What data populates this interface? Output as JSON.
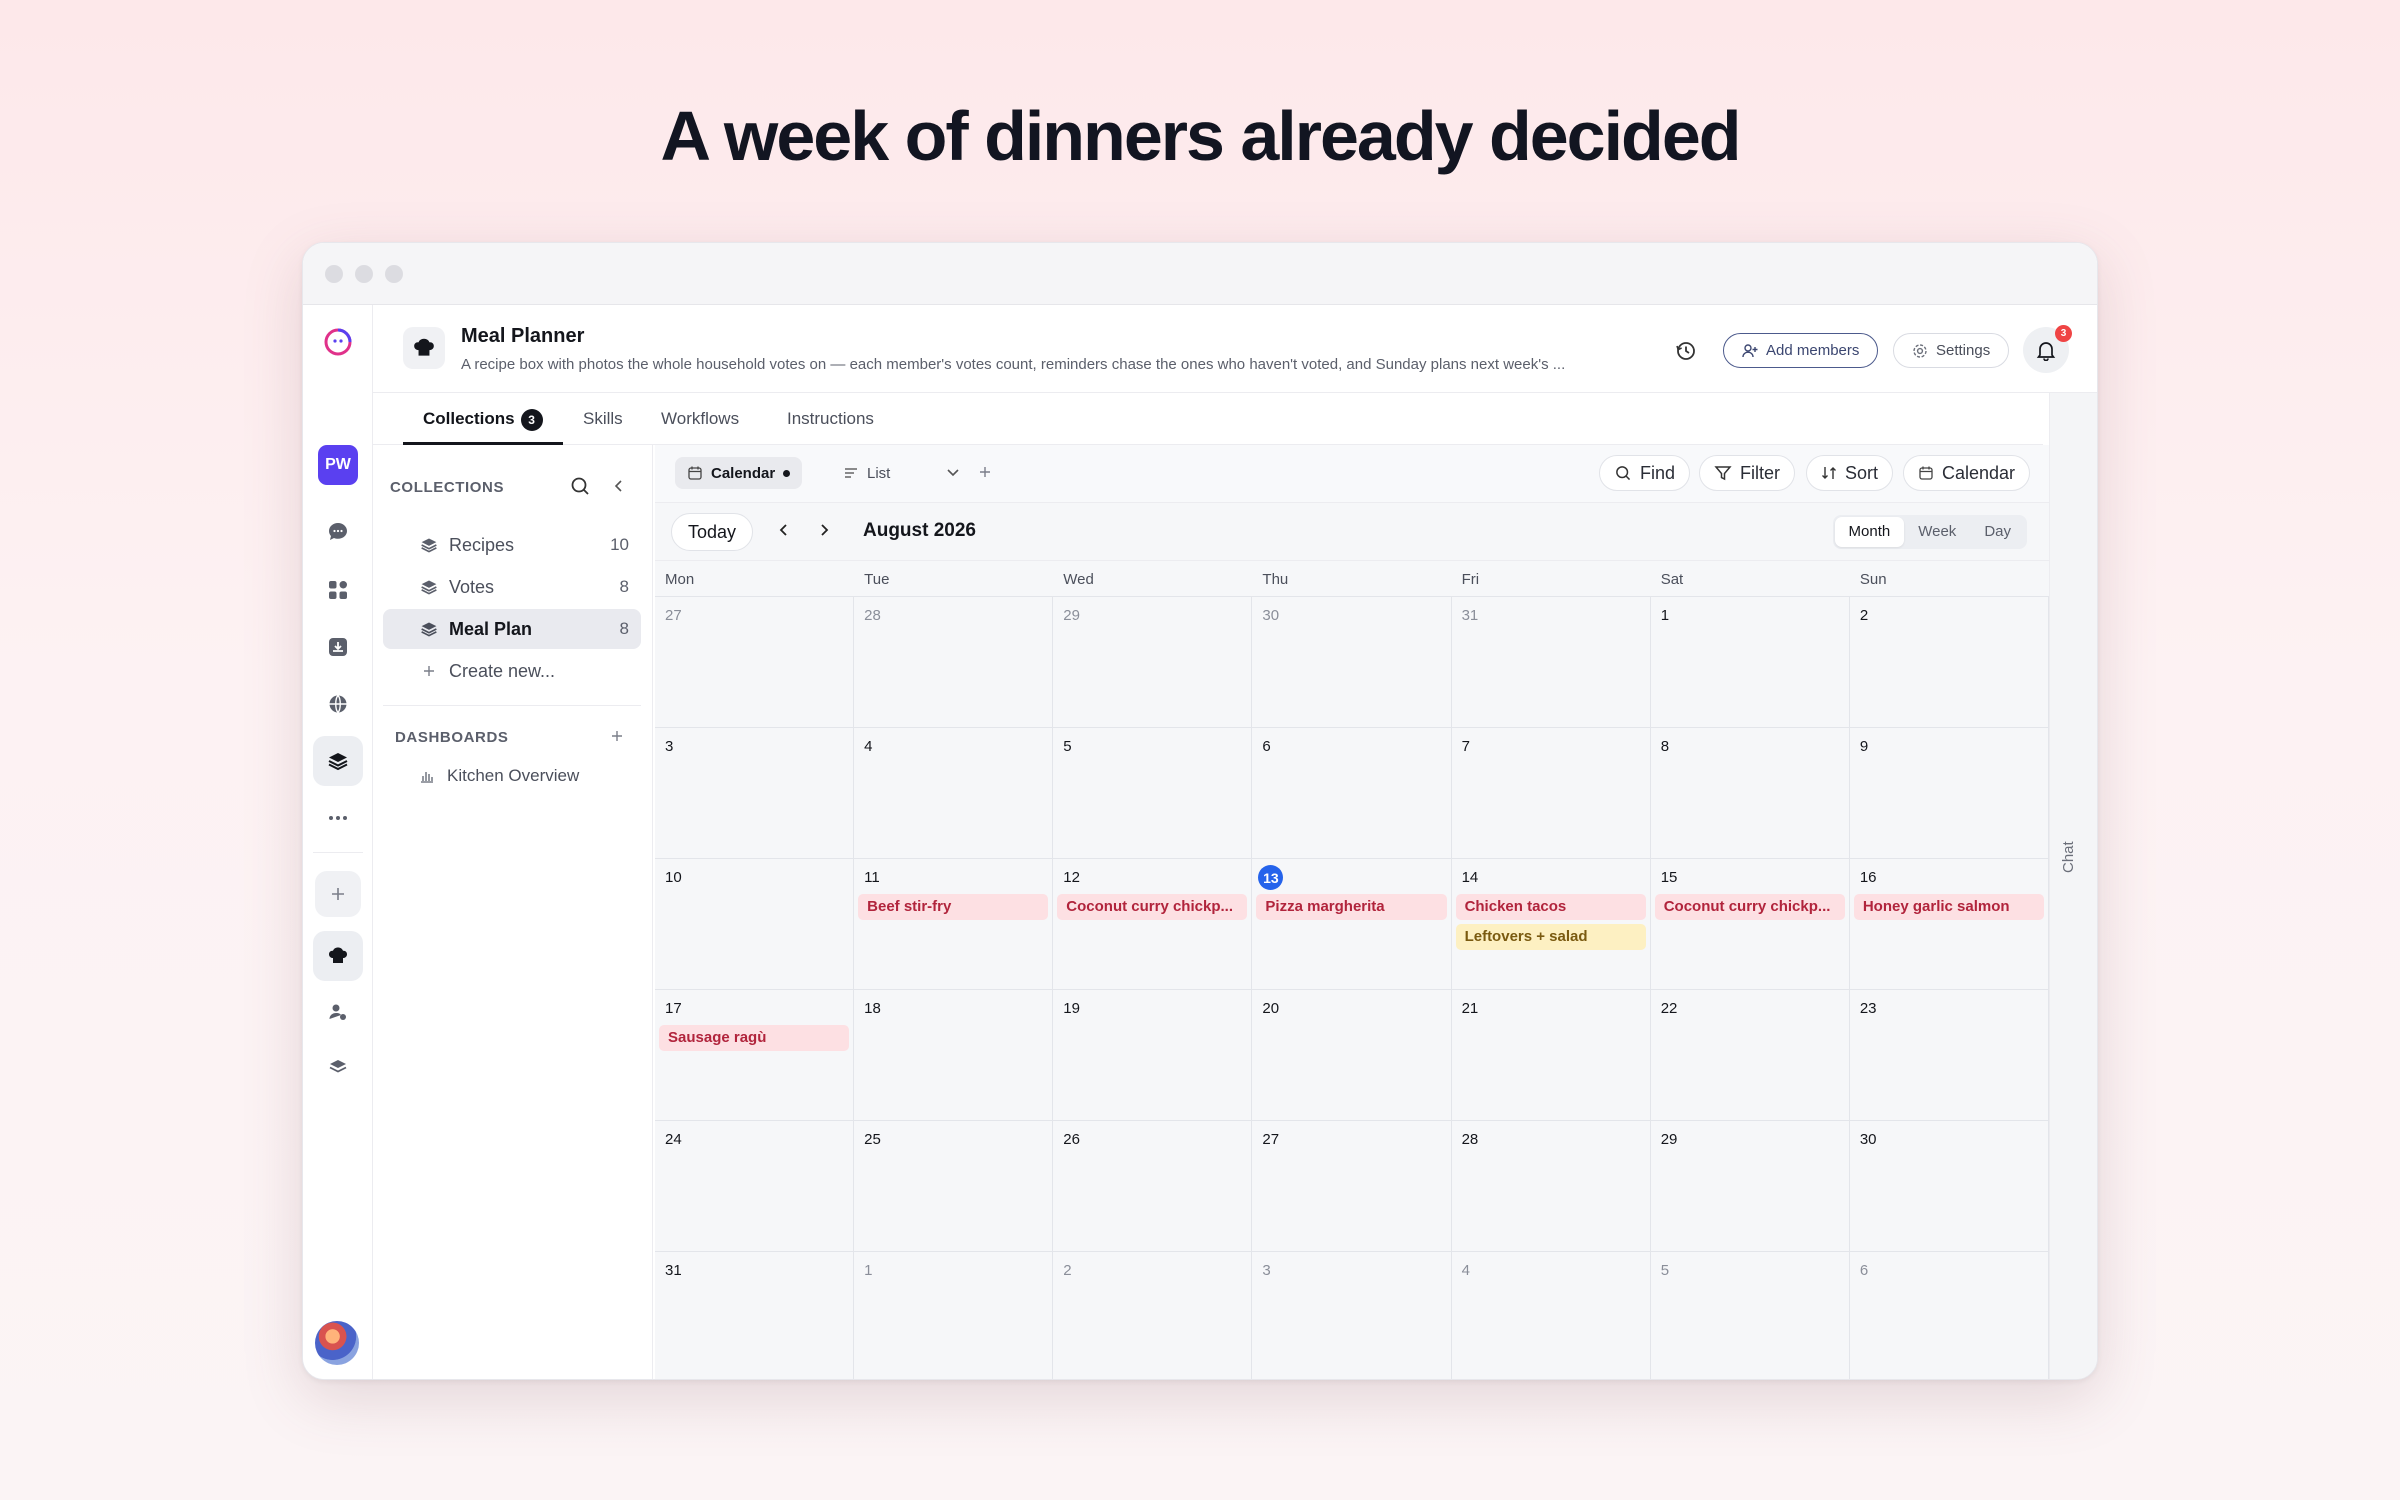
{
  "headline": "A week of dinners already decided",
  "app": {
    "title": "Meal Planner",
    "description": "A recipe box with photos the whole household votes on — each member's votes count, reminders chase the ones who haven't voted, and Sunday plans next week's ...",
    "add_members": "Add members",
    "settings": "Settings",
    "notifications": "3"
  },
  "rail": {
    "workspace_initials": "PW"
  },
  "tabs": [
    {
      "label": "Collections",
      "count": "3"
    },
    {
      "label": "Skills"
    },
    {
      "label": "Workflows"
    },
    {
      "label": "Instructions"
    }
  ],
  "sidebar": {
    "collections_heading": "COLLECTIONS",
    "items": [
      {
        "label": "Recipes",
        "count": "10"
      },
      {
        "label": "Votes",
        "count": "8"
      },
      {
        "label": "Meal Plan",
        "count": "8"
      }
    ],
    "create_new": "Create new...",
    "dashboards_heading": "DASHBOARDS",
    "dashboards": [
      {
        "label": "Kitchen Overview"
      }
    ]
  },
  "toolbar": {
    "view_calendar": "Calendar",
    "view_list": "List",
    "find": "Find",
    "filter": "Filter",
    "sort": "Sort",
    "calendar": "Calendar"
  },
  "calendar": {
    "today": "Today",
    "month_label": "August 2026",
    "modes": [
      "Month",
      "Week",
      "Day"
    ],
    "active_mode": "Month",
    "weekdays": [
      "Mon",
      "Tue",
      "Wed",
      "Thu",
      "Fri",
      "Sat",
      "Sun"
    ],
    "weeks": [
      [
        {
          "d": "27",
          "m": true
        },
        {
          "d": "28",
          "m": true
        },
        {
          "d": "29",
          "m": true
        },
        {
          "d": "30",
          "m": true
        },
        {
          "d": "31",
          "m": true
        },
        {
          "d": "1"
        },
        {
          "d": "2"
        }
      ],
      [
        {
          "d": "3"
        },
        {
          "d": "4"
        },
        {
          "d": "5"
        },
        {
          "d": "6"
        },
        {
          "d": "7"
        },
        {
          "d": "8"
        },
        {
          "d": "9"
        }
      ],
      [
        {
          "d": "10"
        },
        {
          "d": "11",
          "events": [
            {
              "title": "Beef stir-fry",
              "color": "pink"
            }
          ]
        },
        {
          "d": "12",
          "events": [
            {
              "title": "Coconut curry chickp...",
              "color": "pink"
            }
          ]
        },
        {
          "d": "13",
          "today": true,
          "events": [
            {
              "title": "Pizza margherita",
              "color": "pink"
            }
          ]
        },
        {
          "d": "14",
          "events": [
            {
              "title": "Chicken tacos",
              "color": "pink"
            },
            {
              "title": "Leftovers + salad",
              "color": "yellow"
            }
          ]
        },
        {
          "d": "15",
          "events": [
            {
              "title": "Coconut curry chickp...",
              "color": "pink"
            }
          ]
        },
        {
          "d": "16",
          "events": [
            {
              "title": "Honey garlic salmon",
              "color": "pink"
            }
          ]
        }
      ],
      [
        {
          "d": "17",
          "events": [
            {
              "title": "Sausage ragù",
              "color": "pink"
            }
          ]
        },
        {
          "d": "18"
        },
        {
          "d": "19"
        },
        {
          "d": "20"
        },
        {
          "d": "21"
        },
        {
          "d": "22"
        },
        {
          "d": "23"
        }
      ],
      [
        {
          "d": "24"
        },
        {
          "d": "25"
        },
        {
          "d": "26"
        },
        {
          "d": "27"
        },
        {
          "d": "28"
        },
        {
          "d": "29"
        },
        {
          "d": "30"
        }
      ],
      [
        {
          "d": "31"
        },
        {
          "d": "1",
          "m": true
        },
        {
          "d": "2",
          "m": true
        },
        {
          "d": "3",
          "m": true
        },
        {
          "d": "4",
          "m": true
        },
        {
          "d": "5",
          "m": true
        },
        {
          "d": "6",
          "m": true
        }
      ]
    ]
  },
  "chat_label": "Chat",
  "colors": {
    "accent": "#5a40f0",
    "today": "#2563eb",
    "event_pink": "#fde0e3",
    "event_yellow": "#fdf0c2"
  }
}
